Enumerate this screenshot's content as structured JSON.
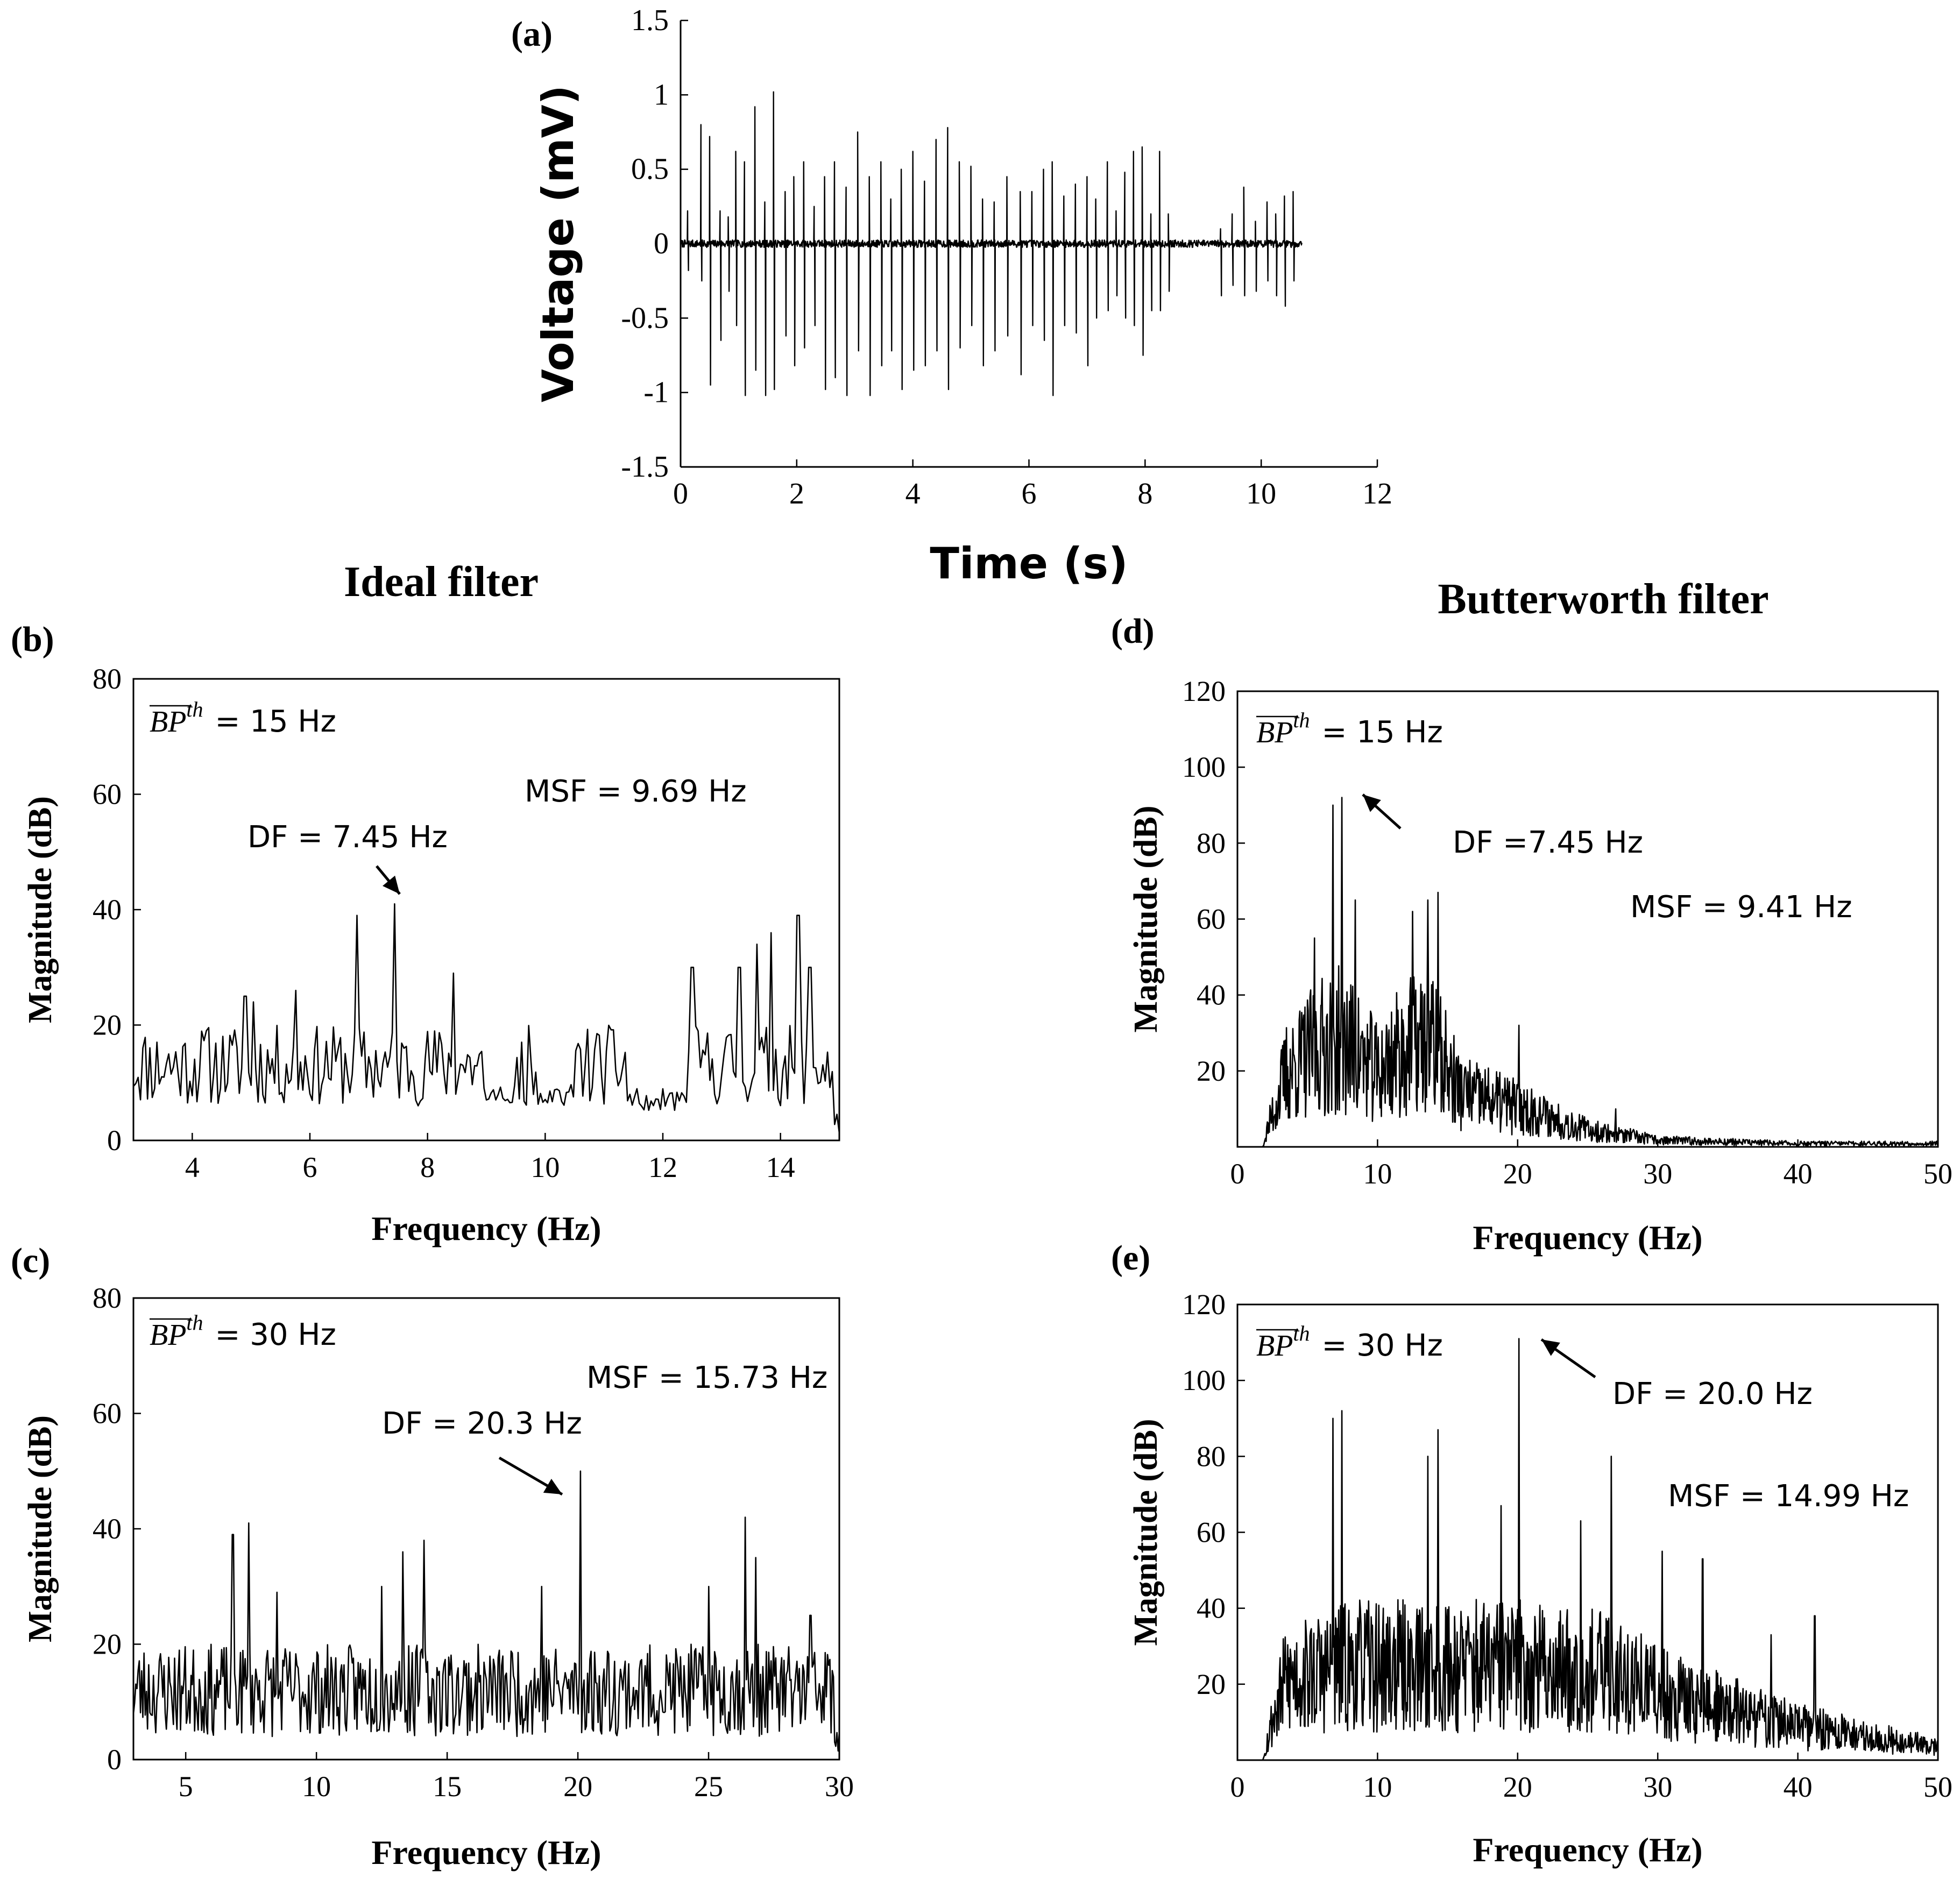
{
  "headers": {
    "ideal": "Ideal  filter",
    "butterworth": "Butterworth  filter"
  },
  "chart_data": [
    {
      "id": "a",
      "panel_label": "(a)",
      "type": "line",
      "title": "",
      "xlabel": "Time (s)",
      "ylabel": "Voltage (mV)",
      "xlim": [
        0,
        12
      ],
      "ylim": [
        -1.5,
        1.5
      ],
      "xticks": [
        0,
        2,
        4,
        6,
        8,
        10,
        12
      ],
      "xtick_labels": [
        "0",
        "2",
        "4",
        "6",
        "8",
        "10",
        "12"
      ],
      "yticks": [
        -1.5,
        -1,
        -0.5,
        0,
        0.5,
        1,
        1.5
      ],
      "ytick_labels": [
        "-1.5",
        "-1",
        "-0.5",
        "0",
        "0.5",
        "1",
        "1.5"
      ],
      "grid": false,
      "series": [
        {
          "signal_end_s": 10.7,
          "spikes": [
            [
              0.12,
              0.22,
              -0.18
            ],
            [
              0.35,
              0.8,
              -0.25
            ],
            [
              0.5,
              0.72,
              -0.95
            ],
            [
              0.68,
              0.22,
              -0.65
            ],
            [
              0.82,
              0.18,
              -0.32
            ],
            [
              0.95,
              0.62,
              -0.55
            ],
            [
              1.1,
              0.55,
              -1.02
            ],
            [
              1.28,
              0.92,
              -0.85
            ],
            [
              1.45,
              0.28,
              -1.02
            ],
            [
              1.6,
              1.02,
              -0.98
            ],
            [
              1.8,
              0.35,
              -0.62
            ],
            [
              1.95,
              0.45,
              -0.82
            ],
            [
              2.12,
              0.55,
              -0.7
            ],
            [
              2.3,
              0.25,
              -0.55
            ],
            [
              2.48,
              0.45,
              -0.98
            ],
            [
              2.65,
              0.55,
              -0.9
            ],
            [
              2.85,
              0.38,
              -1.02
            ],
            [
              3.05,
              0.75,
              -0.72
            ],
            [
              3.25,
              0.45,
              -1.02
            ],
            [
              3.45,
              0.55,
              -0.82
            ],
            [
              3.62,
              0.3,
              -0.72
            ],
            [
              3.8,
              0.5,
              -0.98
            ],
            [
              4.0,
              0.62,
              -0.85
            ],
            [
              4.2,
              0.42,
              -0.82
            ],
            [
              4.4,
              0.7,
              -0.72
            ],
            [
              4.6,
              0.78,
              -0.98
            ],
            [
              4.8,
              0.55,
              -0.7
            ],
            [
              5.0,
              0.52,
              -0.55
            ],
            [
              5.2,
              0.3,
              -0.82
            ],
            [
              5.4,
              0.28,
              -0.72
            ],
            [
              5.62,
              0.45,
              -0.62
            ],
            [
              5.85,
              0.35,
              -0.88
            ],
            [
              6.05,
              0.35,
              -0.55
            ],
            [
              6.25,
              0.5,
              -0.65
            ],
            [
              6.4,
              0.55,
              -1.02
            ],
            [
              6.6,
              0.32,
              -0.55
            ],
            [
              6.8,
              0.4,
              -0.6
            ],
            [
              7.0,
              0.45,
              -0.82
            ],
            [
              7.15,
              0.3,
              -0.5
            ],
            [
              7.35,
              0.55,
              -0.45
            ],
            [
              7.5,
              0.22,
              -0.35
            ],
            [
              7.65,
              0.48,
              -0.5
            ],
            [
              7.8,
              0.62,
              -0.55
            ],
            [
              7.95,
              0.65,
              -0.75
            ],
            [
              8.1,
              0.2,
              -0.45
            ],
            [
              8.25,
              0.62,
              -0.45
            ],
            [
              8.4,
              0.2,
              -0.32
            ],
            [
              9.3,
              0.1,
              -0.35
            ],
            [
              9.5,
              0.2,
              -0.28
            ],
            [
              9.7,
              0.38,
              -0.35
            ],
            [
              9.9,
              0.15,
              -0.32
            ],
            [
              10.1,
              0.28,
              -0.25
            ],
            [
              10.25,
              0.2,
              -0.35
            ],
            [
              10.4,
              0.32,
              -0.42
            ],
            [
              10.55,
              0.35,
              -0.25
            ]
          ]
        }
      ]
    },
    {
      "id": "b",
      "panel_label": "(b)",
      "type": "line",
      "title": "",
      "xlabel": "Frequency (Hz)",
      "ylabel": "Magnitude (dB)",
      "xlim": [
        3,
        15
      ],
      "ylim": [
        0,
        80
      ],
      "xticks": [
        4,
        6,
        8,
        10,
        12,
        14
      ],
      "xtick_labels": [
        "4",
        "6",
        "8",
        "10",
        "12",
        "14"
      ],
      "yticks": [
        0,
        20,
        40,
        60,
        80
      ],
      "ytick_labels": [
        "0",
        "20",
        "40",
        "60",
        "80"
      ],
      "grid": false,
      "annotations": {
        "bp_base": "BP",
        "bp_sup": "th",
        "bp_value": "= 15 Hz",
        "msf": "MSF = 9.69 Hz",
        "df": "DF = 7.45 Hz"
      },
      "series": [
        {
          "x_range": [
            3,
            15
          ],
          "points": 300,
          "seed": 11,
          "base": 13,
          "noise": 7,
          "peaks": [
            [
              4.25,
              19
            ],
            [
              4.9,
              25
            ],
            [
              5.05,
              24
            ],
            [
              5.75,
              26
            ],
            [
              6.8,
              39
            ],
            [
              7.45,
              41
            ],
            [
              8.45,
              29
            ],
            [
              12.5,
              30
            ],
            [
              13.3,
              30
            ],
            [
              13.6,
              34
            ],
            [
              13.85,
              36
            ],
            [
              14.3,
              39
            ],
            [
              14.5,
              30
            ]
          ],
          "low_regions": [
            [
              8.95,
              9.5,
              6
            ],
            [
              9.95,
              10.5,
              6
            ],
            [
              11.4,
              12.4,
              5
            ],
            [
              14.9,
              15,
              1
            ]
          ]
        }
      ]
    },
    {
      "id": "c",
      "panel_label": "(c)",
      "type": "line",
      "title": "",
      "xlabel": "Frequency (Hz)",
      "ylabel": "Magnitude (dB)",
      "xlim": [
        3,
        30
      ],
      "ylim": [
        0,
        80
      ],
      "xticks": [
        5,
        10,
        15,
        20,
        25,
        30
      ],
      "xtick_labels": [
        "5",
        "10",
        "15",
        "20",
        "25",
        "30"
      ],
      "yticks": [
        0,
        20,
        40,
        60,
        80
      ],
      "ytick_labels": [
        "0",
        "20",
        "40",
        "60",
        "80"
      ],
      "grid": false,
      "annotations": {
        "bp_base": "BP",
        "bp_sup": "th",
        "bp_value": "= 30 Hz",
        "msf": "MSF = 15.73 Hz",
        "df": "DF = 20.3 Hz"
      },
      "series": [
        {
          "x_range": [
            3,
            30
          ],
          "points": 600,
          "seed": 23,
          "base": 12,
          "noise": 8,
          "peaks": [
            [
              6.8,
              39
            ],
            [
              7.4,
              41
            ],
            [
              8.5,
              29
            ],
            [
              12.5,
              30
            ],
            [
              13.3,
              36
            ],
            [
              14.1,
              38
            ],
            [
              18.6,
              30
            ],
            [
              20.1,
              50
            ],
            [
              25.0,
              30
            ],
            [
              26.4,
              42
            ],
            [
              26.8,
              35
            ],
            [
              28.9,
              25
            ]
          ],
          "low_regions": [
            [
              29.8,
              30,
              1
            ]
          ]
        }
      ]
    },
    {
      "id": "d",
      "panel_label": "(d)",
      "type": "line",
      "title": "",
      "xlabel": "Frequency (Hz)",
      "ylabel": "Magnitude (dB)",
      "xlim": [
        0,
        50
      ],
      "ylim": [
        0,
        120
      ],
      "xticks": [
        0,
        10,
        20,
        30,
        40,
        50
      ],
      "xtick_labels": [
        "0",
        "10",
        "20",
        "30",
        "40",
        "50"
      ],
      "yticks": [
        20,
        40,
        60,
        80,
        100,
        120
      ],
      "ytick_labels": [
        "20",
        "40",
        "60",
        "80",
        "100",
        "120"
      ],
      "grid": false,
      "annotations": {
        "bp_base": "BP",
        "bp_sup": "th",
        "bp_value": "= 15 Hz",
        "msf": "MSF = 9.41 Hz",
        "df": "DF =7.45 Hz"
      },
      "series": [
        {
          "x_range": [
            0,
            50
          ],
          "points": 1100,
          "seed": 37,
          "envelope": [
            [
              0,
              0
            ],
            [
              1.8,
              0
            ],
            [
              2.5,
              10
            ],
            [
              3.5,
              22
            ],
            [
              6,
              30
            ],
            [
              7.5,
              32
            ],
            [
              10,
              22
            ],
            [
              12,
              30
            ],
            [
              14,
              30
            ],
            [
              16,
              16
            ],
            [
              20,
              12
            ],
            [
              25,
              5
            ],
            [
              30,
              2
            ],
            [
              40,
              1
            ],
            [
              50,
              1
            ]
          ],
          "noise_scale": 0.9,
          "peaks": [
            [
              6.8,
              90
            ],
            [
              7.45,
              92
            ],
            [
              8.4,
              65
            ],
            [
              5.5,
              55
            ],
            [
              12.5,
              62
            ],
            [
              13.6,
              65
            ],
            [
              14.3,
              67
            ],
            [
              20.1,
              32
            ],
            [
              27,
              10
            ]
          ]
        }
      ]
    },
    {
      "id": "e",
      "panel_label": "(e)",
      "type": "line",
      "title": "",
      "xlabel": "Frequency (Hz)",
      "ylabel": "Magnitude (dB)",
      "xlim": [
        0,
        50
      ],
      "ylim": [
        0,
        120
      ],
      "xticks": [
        0,
        10,
        20,
        30,
        40,
        50
      ],
      "xtick_labels": [
        "0",
        "10",
        "20",
        "30",
        "40",
        "50"
      ],
      "yticks": [
        20,
        40,
        60,
        80,
        100,
        120
      ],
      "ytick_labels": [
        "20",
        "40",
        "60",
        "80",
        "100",
        "120"
      ],
      "grid": false,
      "annotations": {
        "bp_base": "BP",
        "bp_sup": "th",
        "bp_value": "= 30 Hz",
        "msf": "MSF = 14.99 Hz",
        "df": "DF = 20.0 Hz"
      },
      "series": [
        {
          "x_range": [
            0,
            50
          ],
          "points": 1100,
          "seed": 53,
          "envelope": [
            [
              0,
              0
            ],
            [
              1.8,
              0
            ],
            [
              2.5,
              12
            ],
            [
              3.5,
              24
            ],
            [
              8,
              28
            ],
            [
              15,
              28
            ],
            [
              20,
              28
            ],
            [
              27,
              26
            ],
            [
              30,
              20
            ],
            [
              35,
              15
            ],
            [
              40,
              10
            ],
            [
              45,
              7
            ],
            [
              50,
              4
            ]
          ],
          "noise_scale": 0.9,
          "peaks": [
            [
              6.8,
              90
            ],
            [
              7.45,
              92
            ],
            [
              13.6,
              80
            ],
            [
              14.3,
              87
            ],
            [
              18.8,
              67
            ],
            [
              20.1,
              111
            ],
            [
              24.5,
              63
            ],
            [
              26.7,
              80
            ],
            [
              30.3,
              55
            ],
            [
              33.2,
              53
            ],
            [
              38.1,
              33
            ],
            [
              41.2,
              38
            ]
          ]
        }
      ]
    }
  ]
}
